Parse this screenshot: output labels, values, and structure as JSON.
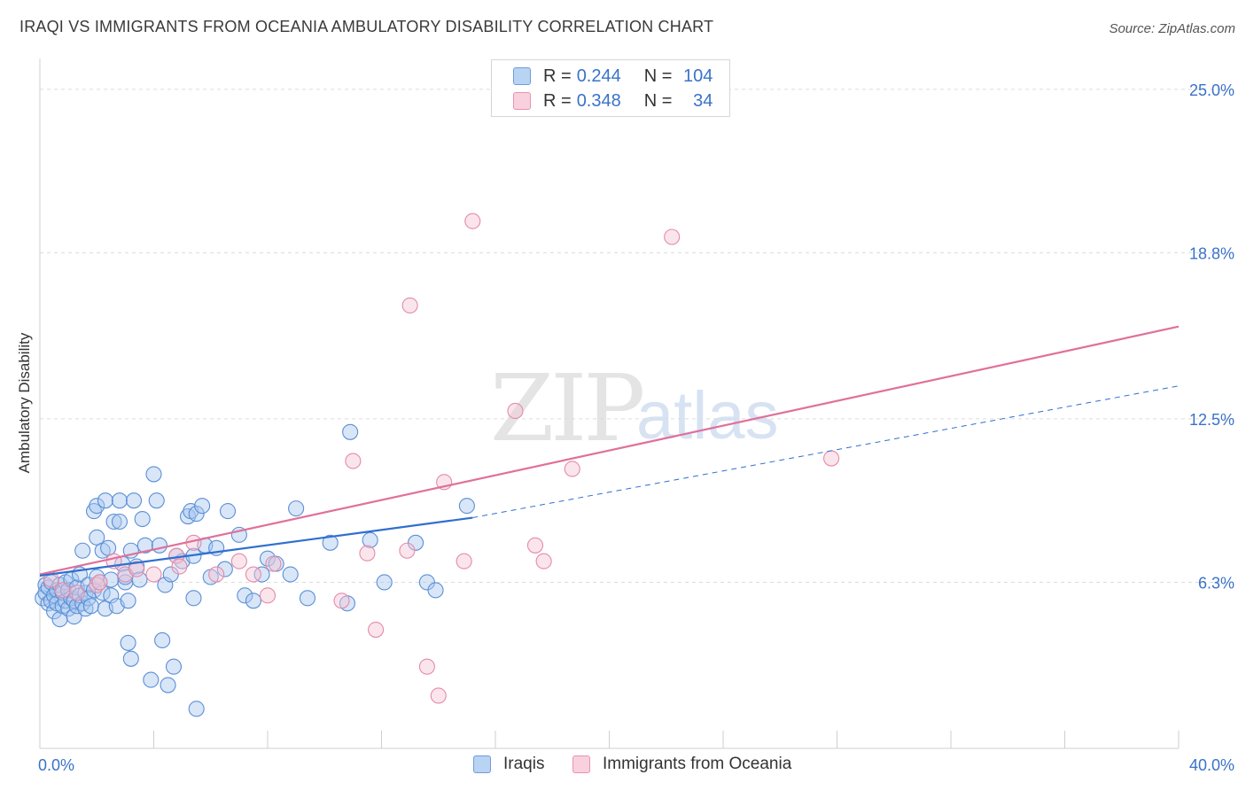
{
  "title": "IRAQI VS IMMIGRANTS FROM OCEANIA AMBULATORY DISABILITY CORRELATION CHART",
  "source": "Source: ZipAtlas.com",
  "watermark": {
    "zip": "ZIP",
    "atlas": "atlas"
  },
  "legend_top": {
    "rows": [
      {
        "r_label": "R =",
        "r_value": "0.244",
        "n_label": "N =",
        "n_value": "104"
      },
      {
        "r_label": "R =",
        "r_value": "0.348",
        "n_label": "N =",
        "n_value": "34"
      }
    ]
  },
  "legend_bottom": {
    "items": [
      "Iraqis",
      "Immigrants from Oceania"
    ]
  },
  "colors": {
    "blue_fill": "#a9c8ef",
    "blue_stroke": "#5b8fd6",
    "blue_line": "#2f6fcf",
    "pink_fill": "#f7c5d5",
    "pink_stroke": "#e48aa8",
    "pink_line": "#e0709a",
    "axis_text": "#3a72c8",
    "grid": "#dcdcdc"
  },
  "chart_data": {
    "type": "scatter",
    "title": "IRAQI VS IMMIGRANTS FROM OCEANIA AMBULATORY DISABILITY CORRELATION CHART",
    "xlabel": "",
    "ylabel": "Ambulatory Disability",
    "xlim": [
      0,
      40
    ],
    "ylim": [
      0,
      25.8
    ],
    "x_tick_labels": [
      "0.0%",
      "40.0%"
    ],
    "y_ticks": [
      6.3,
      12.5,
      18.8,
      25.0
    ],
    "y_tick_labels": [
      "6.3%",
      "12.5%",
      "18.8%",
      "25.0%"
    ],
    "series": [
      {
        "name": "Iraqis",
        "r": 0.244,
        "n": 104,
        "trend": {
          "x0": 0,
          "y0": 6.55,
          "x1": 15.2,
          "y1": 8.75,
          "dash_x1": 40,
          "dash_y1": 13.75
        },
        "points": [
          [
            0.1,
            5.7
          ],
          [
            0.2,
            6.2
          ],
          [
            0.2,
            5.9
          ],
          [
            0.3,
            5.5
          ],
          [
            0.3,
            6.1
          ],
          [
            0.4,
            5.6
          ],
          [
            0.4,
            6.3
          ],
          [
            0.5,
            5.8
          ],
          [
            0.5,
            5.2
          ],
          [
            0.6,
            6.0
          ],
          [
            0.6,
            5.5
          ],
          [
            0.7,
            4.9
          ],
          [
            0.7,
            6.2
          ],
          [
            0.8,
            5.4
          ],
          [
            0.8,
            5.9
          ],
          [
            0.9,
            5.6
          ],
          [
            0.9,
            6.3
          ],
          [
            1.0,
            5.3
          ],
          [
            1.0,
            6.0
          ],
          [
            1.1,
            5.7
          ],
          [
            1.1,
            6.4
          ],
          [
            1.2,
            5.0
          ],
          [
            1.2,
            5.6
          ],
          [
            1.3,
            6.1
          ],
          [
            1.3,
            5.4
          ],
          [
            1.4,
            5.8
          ],
          [
            1.4,
            6.6
          ],
          [
            1.5,
            5.5
          ],
          [
            1.5,
            7.5
          ],
          [
            1.6,
            5.9
          ],
          [
            1.6,
            5.3
          ],
          [
            1.7,
            6.2
          ],
          [
            1.7,
            5.7
          ],
          [
            1.8,
            5.4
          ],
          [
            1.9,
            9.0
          ],
          [
            1.9,
            6.0
          ],
          [
            2.0,
            8.0
          ],
          [
            2.0,
            6.5
          ],
          [
            2.0,
            9.2
          ],
          [
            2.1,
            6.3
          ],
          [
            2.2,
            5.9
          ],
          [
            2.2,
            7.5
          ],
          [
            2.3,
            9.4
          ],
          [
            2.3,
            5.3
          ],
          [
            2.4,
            7.6
          ],
          [
            2.5,
            6.4
          ],
          [
            2.5,
            5.8
          ],
          [
            2.6,
            8.6
          ],
          [
            2.7,
            5.4
          ],
          [
            2.8,
            8.6
          ],
          [
            2.8,
            9.4
          ],
          [
            2.9,
            7.0
          ],
          [
            3.0,
            6.3
          ],
          [
            3.0,
            6.5
          ],
          [
            3.1,
            4.0
          ],
          [
            3.1,
            5.6
          ],
          [
            3.2,
            3.4
          ],
          [
            3.2,
            7.5
          ],
          [
            3.3,
            9.4
          ],
          [
            3.4,
            6.9
          ],
          [
            3.5,
            6.4
          ],
          [
            3.6,
            8.7
          ],
          [
            3.7,
            7.7
          ],
          [
            3.9,
            2.6
          ],
          [
            4.0,
            10.4
          ],
          [
            4.1,
            9.4
          ],
          [
            4.2,
            7.7
          ],
          [
            4.3,
            4.1
          ],
          [
            4.4,
            6.2
          ],
          [
            4.5,
            2.4
          ],
          [
            4.6,
            6.6
          ],
          [
            4.7,
            3.1
          ],
          [
            4.8,
            7.3
          ],
          [
            5.0,
            7.1
          ],
          [
            5.2,
            8.8
          ],
          [
            5.3,
            9.0
          ],
          [
            5.4,
            5.7
          ],
          [
            5.4,
            7.3
          ],
          [
            5.5,
            1.5
          ],
          [
            5.5,
            8.9
          ],
          [
            5.7,
            9.2
          ],
          [
            5.8,
            7.7
          ],
          [
            6.0,
            6.5
          ],
          [
            6.2,
            7.6
          ],
          [
            6.5,
            6.8
          ],
          [
            6.6,
            9.0
          ],
          [
            7.0,
            8.1
          ],
          [
            7.2,
            5.8
          ],
          [
            7.5,
            5.6
          ],
          [
            7.8,
            6.6
          ],
          [
            8.0,
            7.2
          ],
          [
            8.3,
            7.0
          ],
          [
            8.8,
            6.6
          ],
          [
            9.0,
            9.1
          ],
          [
            9.4,
            5.7
          ],
          [
            10.2,
            7.8
          ],
          [
            10.8,
            5.5
          ],
          [
            11.6,
            7.9
          ],
          [
            12.1,
            6.3
          ],
          [
            13.2,
            7.8
          ],
          [
            13.6,
            6.3
          ],
          [
            15.0,
            9.2
          ],
          [
            10.9,
            12.0
          ],
          [
            13.9,
            6.0
          ]
        ]
      },
      {
        "name": "Immigrants from Oceania",
        "r": 0.348,
        "n": 34,
        "trend": {
          "x0": 0,
          "y0": 6.6,
          "x1": 40,
          "y1": 16.0
        },
        "points": [
          [
            0.4,
            6.4
          ],
          [
            0.8,
            6.0
          ],
          [
            1.3,
            5.9
          ],
          [
            2.0,
            6.2
          ],
          [
            2.1,
            6.3
          ],
          [
            2.6,
            7.1
          ],
          [
            3.0,
            6.6
          ],
          [
            3.4,
            6.8
          ],
          [
            4.0,
            6.6
          ],
          [
            4.8,
            7.3
          ],
          [
            4.9,
            6.9
          ],
          [
            5.4,
            7.8
          ],
          [
            6.2,
            6.6
          ],
          [
            7.0,
            7.1
          ],
          [
            7.5,
            6.6
          ],
          [
            8.0,
            5.8
          ],
          [
            8.2,
            7.0
          ],
          [
            10.6,
            5.6
          ],
          [
            11.0,
            10.9
          ],
          [
            11.5,
            7.4
          ],
          [
            11.8,
            4.5
          ],
          [
            12.9,
            7.5
          ],
          [
            13.0,
            16.8
          ],
          [
            13.6,
            3.1
          ],
          [
            14.0,
            2.0
          ],
          [
            14.2,
            10.1
          ],
          [
            14.9,
            7.1
          ],
          [
            15.2,
            20.0
          ],
          [
            16.7,
            12.8
          ],
          [
            17.4,
            7.7
          ],
          [
            17.7,
            7.1
          ],
          [
            18.7,
            10.6
          ],
          [
            22.2,
            19.4
          ],
          [
            27.8,
            11.0
          ]
        ]
      }
    ]
  }
}
